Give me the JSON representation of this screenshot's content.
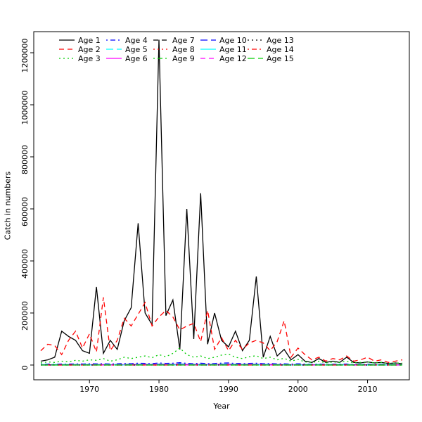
{
  "chart_data": {
    "type": "line",
    "title": "",
    "xlabel": "Year",
    "ylabel": "Catch in numbers",
    "xlim": [
      1963,
      2015
    ],
    "ylim": [
      0,
      1250000
    ],
    "x_ticks": [
      1970,
      1980,
      1990,
      2000,
      2010
    ],
    "y_ticks": [
      0,
      200000,
      400000,
      600000,
      800000,
      1000000,
      1200000
    ],
    "grid": false,
    "legend_position": "top-left",
    "legend_columns": 5,
    "legend_rows": 3,
    "x": [
      1963,
      1964,
      1965,
      1966,
      1967,
      1968,
      1969,
      1970,
      1971,
      1972,
      1973,
      1974,
      1975,
      1976,
      1977,
      1978,
      1979,
      1980,
      1981,
      1982,
      1983,
      1984,
      1985,
      1986,
      1987,
      1988,
      1989,
      1990,
      1991,
      1992,
      1993,
      1994,
      1995,
      1996,
      1997,
      1998,
      1999,
      2000,
      2001,
      2002,
      2003,
      2004,
      2005,
      2006,
      2007,
      2008,
      2009,
      2010,
      2011,
      2012,
      2013,
      2014,
      2015
    ],
    "series": [
      {
        "name": "Age 1",
        "color": "#000000",
        "linestyle": "solid",
        "values": [
          15000,
          20000,
          30000,
          130000,
          110000,
          95000,
          55000,
          45000,
          300000,
          45000,
          95000,
          60000,
          170000,
          220000,
          545000,
          200000,
          155000,
          1250000,
          190000,
          250000,
          60000,
          600000,
          100000,
          660000,
          80000,
          200000,
          95000,
          70000,
          130000,
          55000,
          95000,
          340000,
          30000,
          110000,
          35000,
          60000,
          20000,
          40000,
          15000,
          10000,
          25000,
          10000,
          15000,
          10000,
          30000,
          10000,
          8000,
          12000,
          8000,
          10000,
          6000,
          8000,
          5000
        ]
      },
      {
        "name": "Age 2",
        "color": "#FF0000",
        "linestyle": "dashed",
        "values": [
          55000,
          80000,
          75000,
          40000,
          95000,
          130000,
          65000,
          120000,
          50000,
          260000,
          55000,
          95000,
          180000,
          150000,
          195000,
          240000,
          150000,
          185000,
          210000,
          185000,
          135000,
          150000,
          160000,
          90000,
          210000,
          60000,
          105000,
          55000,
          95000,
          60000,
          85000,
          95000,
          85000,
          55000,
          90000,
          170000,
          30000,
          65000,
          40000,
          20000,
          30000,
          15000,
          25000,
          20000,
          35000,
          15000,
          20000,
          30000,
          15000,
          20000,
          10000,
          15000,
          20000
        ]
      },
      {
        "name": "Age 3",
        "color": "#00CD00",
        "linestyle": "dotted",
        "values": [
          8000,
          12000,
          10000,
          15000,
          12000,
          18000,
          15000,
          20000,
          18000,
          25000,
          15000,
          20000,
          30000,
          25000,
          30000,
          35000,
          28000,
          40000,
          32000,
          45000,
          65000,
          40000,
          30000,
          35000,
          25000,
          30000,
          38000,
          42000,
          30000,
          25000,
          32000,
          36000,
          25000,
          30000,
          20000,
          26000,
          15000,
          22000,
          12000,
          10000,
          15000,
          8000,
          12000,
          10000,
          15000,
          8000,
          10000,
          12000,
          8000,
          10000,
          6000,
          8000,
          7000
        ]
      },
      {
        "name": "Age 4",
        "color": "#0000FF",
        "linestyle": "dotdash",
        "values": [
          3000,
          3500,
          3000,
          4000,
          3500,
          4500,
          4000,
          5000,
          4500,
          5500,
          4000,
          5000,
          6000,
          5500,
          7000,
          6500,
          5500,
          8000,
          6500,
          7000,
          9000,
          6500,
          5500,
          7000,
          5500,
          6000,
          7500,
          8000,
          6000,
          5500,
          6500,
          7000,
          5500,
          6000,
          4500,
          5000,
          3500,
          5000,
          3500,
          3000,
          4000,
          2500,
          3000,
          3500,
          4000,
          2500,
          3000,
          3500,
          2500,
          3000,
          2500,
          2500,
          2000
        ]
      },
      {
        "name": "Age 5",
        "color": "#00FFFF",
        "linestyle": "longdash",
        "values": [
          1500,
          2000,
          1800,
          2200,
          2000,
          2500,
          2200,
          2800,
          2500,
          3000,
          2200,
          2800,
          3200,
          3000,
          3800,
          3500,
          3000,
          4200,
          3500,
          3800,
          4800,
          3500,
          3000,
          3800,
          3000,
          3200,
          4000,
          4200,
          3200,
          3000,
          3500,
          3800,
          3000,
          3200,
          2500,
          2800,
          2000,
          2800,
          2000,
          1800,
          2200,
          1500,
          1800,
          2000,
          2200,
          1500,
          1800,
          2000,
          1500,
          1800,
          1500,
          1500,
          1200
        ]
      },
      {
        "name": "Age 6",
        "color": "#FF00FF",
        "linestyle": "solid",
        "values": [
          1000,
          1200,
          1100,
          1400,
          1200,
          1500,
          1400,
          1700,
          1500,
          1900,
          1400,
          1700,
          2000,
          1900,
          2300,
          2100,
          1900,
          2600,
          2100,
          2300,
          2900,
          2100,
          1900,
          2300,
          1900,
          2000,
          2500,
          2600,
          2000,
          1900,
          2100,
          2300,
          1900,
          2000,
          1500,
          1700,
          1200,
          1700,
          1200,
          1100,
          1400,
          1000,
          1100,
          1200,
          1400,
          1000,
          1100,
          1200,
          1000,
          1100,
          1000,
          1000,
          800
        ]
      },
      {
        "name": "Age 7",
        "color": "#000000",
        "linestyle": "dashed",
        "values": [
          600,
          750,
          700,
          850,
          750,
          950,
          850,
          1050,
          950,
          1150,
          850,
          1050,
          1250,
          1150,
          1400,
          1300,
          1150,
          1600,
          1300,
          1400,
          1800,
          1300,
          1150,
          1400,
          1150,
          1250,
          1500,
          1600,
          1250,
          1150,
          1300,
          1400,
          1150,
          1250,
          950,
          1050,
          750,
          1050,
          750,
          700,
          850,
          600,
          700,
          750,
          850,
          600,
          700,
          750,
          600,
          700,
          600,
          600,
          500
        ]
      },
      {
        "name": "Age 8",
        "color": "#FF0000",
        "linestyle": "dotted",
        "values": [
          400,
          480,
          450,
          550,
          480,
          600,
          550,
          680,
          600,
          750,
          550,
          680,
          800,
          750,
          900,
          850,
          750,
          1050,
          850,
          900,
          1150,
          850,
          750,
          900,
          750,
          800,
          980,
          1050,
          800,
          750,
          850,
          900,
          750,
          800,
          600,
          680,
          480,
          680,
          480,
          450,
          550,
          400,
          450,
          480,
          550,
          400,
          450,
          480,
          400,
          450,
          400,
          400,
          320
        ]
      },
      {
        "name": "Age 9",
        "color": "#00CD00",
        "linestyle": "dotdash",
        "values": [
          260,
          310,
          290,
          360,
          310,
          390,
          360,
          440,
          390,
          490,
          360,
          440,
          520,
          490,
          590,
          550,
          490,
          680,
          550,
          590,
          750,
          550,
          490,
          590,
          490,
          520,
          640,
          680,
          520,
          490,
          550,
          590,
          490,
          520,
          390,
          440,
          310,
          440,
          310,
          290,
          360,
          260,
          290,
          310,
          360,
          260,
          290,
          310,
          260,
          290,
          260,
          260,
          210
        ]
      },
      {
        "name": "Age 10",
        "color": "#0000FF",
        "linestyle": "longdash",
        "values": [
          170,
          200,
          190,
          230,
          200,
          250,
          230,
          290,
          250,
          320,
          230,
          290,
          340,
          320,
          380,
          360,
          320,
          440,
          360,
          380,
          490,
          360,
          320,
          380,
          320,
          340,
          420,
          440,
          340,
          320,
          360,
          380,
          320,
          340,
          250,
          290,
          200,
          290,
          200,
          190,
          230,
          170,
          190,
          200,
          230,
          170,
          190,
          200,
          170,
          190,
          170,
          170,
          140
        ]
      },
      {
        "name": "Age 11",
        "color": "#00FFFF",
        "linestyle": "solid",
        "values": [
          110,
          130,
          120,
          150,
          130,
          160,
          150,
          190,
          160,
          210,
          150,
          190,
          220,
          210,
          250,
          230,
          210,
          290,
          230,
          250,
          320,
          230,
          210,
          250,
          210,
          220,
          270,
          290,
          220,
          210,
          230,
          250,
          210,
          220,
          160,
          190,
          130,
          190,
          130,
          120,
          150,
          110,
          120,
          130,
          150,
          110,
          120,
          130,
          110,
          120,
          110,
          110,
          90
        ]
      },
      {
        "name": "Age 12",
        "color": "#FF00FF",
        "linestyle": "dashed",
        "values": [
          70,
          85,
          80,
          100,
          85,
          105,
          100,
          125,
          105,
          135,
          100,
          125,
          145,
          135,
          160,
          150,
          135,
          190,
          150,
          160,
          210,
          150,
          135,
          160,
          135,
          145,
          175,
          190,
          145,
          135,
          150,
          160,
          135,
          145,
          105,
          125,
          85,
          125,
          85,
          80,
          100,
          70,
          80,
          85,
          100,
          70,
          80,
          85,
          70,
          80,
          70,
          70,
          60
        ]
      },
      {
        "name": "Age 13",
        "color": "#000000",
        "linestyle": "dotted",
        "values": [
          45,
          55,
          50,
          65,
          55,
          70,
          65,
          80,
          70,
          90,
          65,
          80,
          95,
          90,
          105,
          100,
          90,
          125,
          100,
          105,
          135,
          100,
          90,
          105,
          90,
          95,
          115,
          125,
          95,
          90,
          100,
          105,
          90,
          95,
          70,
          80,
          55,
          80,
          55,
          50,
          65,
          45,
          50,
          55,
          65,
          45,
          50,
          55,
          45,
          50,
          45,
          45,
          40
        ]
      },
      {
        "name": "Age 14",
        "color": "#FF0000",
        "linestyle": "dotdash",
        "values": [
          30,
          36,
          33,
          42,
          36,
          46,
          42,
          52,
          46,
          58,
          42,
          52,
          62,
          58,
          68,
          65,
          58,
          81,
          65,
          68,
          88,
          65,
          58,
          68,
          58,
          62,
          75,
          81,
          62,
          58,
          65,
          68,
          58,
          62,
          46,
          52,
          36,
          52,
          36,
          33,
          42,
          30,
          33,
          36,
          42,
          30,
          33,
          36,
          30,
          33,
          30,
          30,
          26
        ]
      },
      {
        "name": "Age 15",
        "color": "#00CD00",
        "linestyle": "longdash",
        "values": [
          20,
          24,
          22,
          28,
          24,
          30,
          28,
          35,
          30,
          38,
          28,
          35,
          41,
          38,
          45,
          43,
          38,
          54,
          43,
          45,
          58,
          43,
          38,
          45,
          38,
          41,
          50,
          54,
          41,
          38,
          43,
          45,
          38,
          41,
          30,
          35,
          24,
          35,
          24,
          22,
          28,
          20,
          22,
          24,
          28,
          20,
          22,
          24,
          20,
          22,
          20,
          20,
          17
        ]
      }
    ]
  }
}
